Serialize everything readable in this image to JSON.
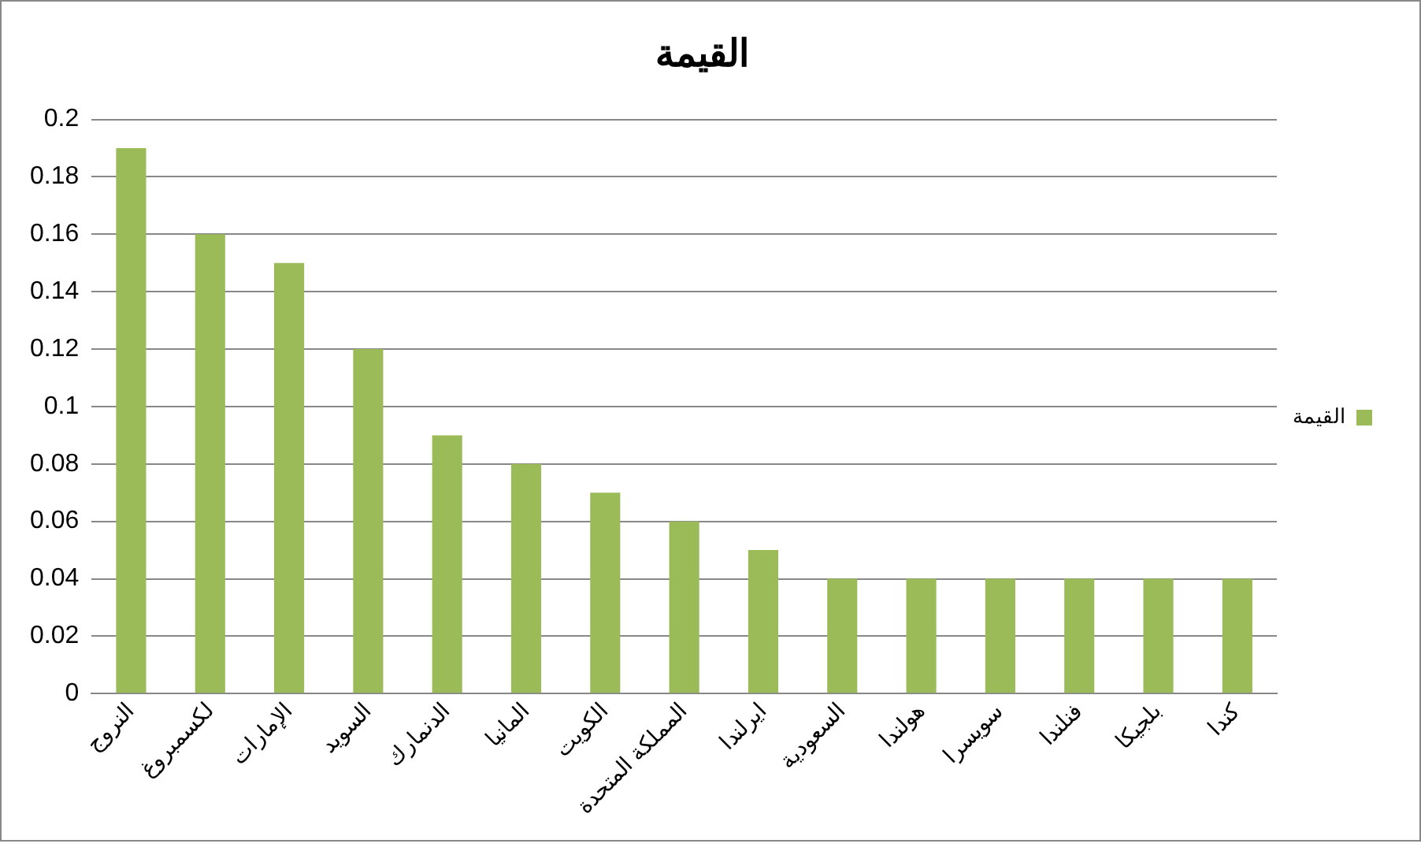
{
  "chart_data": {
    "type": "bar",
    "title": "القيمة",
    "categories": [
      "النروج",
      "لكسمبروغ",
      "الإمارات",
      "السويد",
      "الدنمارك",
      "المانيا",
      "الكويت",
      "المملكة المتحدة",
      "ايرلندا",
      "السعودية",
      "هولندا",
      "سويسرا",
      "فنلندا",
      "بلجيكا",
      "كندا"
    ],
    "series": [
      {
        "name": "القيمة",
        "color": "#9bbb59",
        "values": [
          0.19,
          0.16,
          0.15,
          0.12,
          0.09,
          0.08,
          0.07,
          0.06,
          0.05,
          0.04,
          0.04,
          0.04,
          0.04,
          0.04,
          0.04
        ]
      }
    ],
    "ylim": [
      0,
      0.2
    ],
    "yticks": [
      0,
      0.02,
      0.04,
      0.06,
      0.08,
      0.1,
      0.12,
      0.14,
      0.16,
      0.18,
      0.2
    ],
    "grid": "y",
    "legend": "right"
  }
}
